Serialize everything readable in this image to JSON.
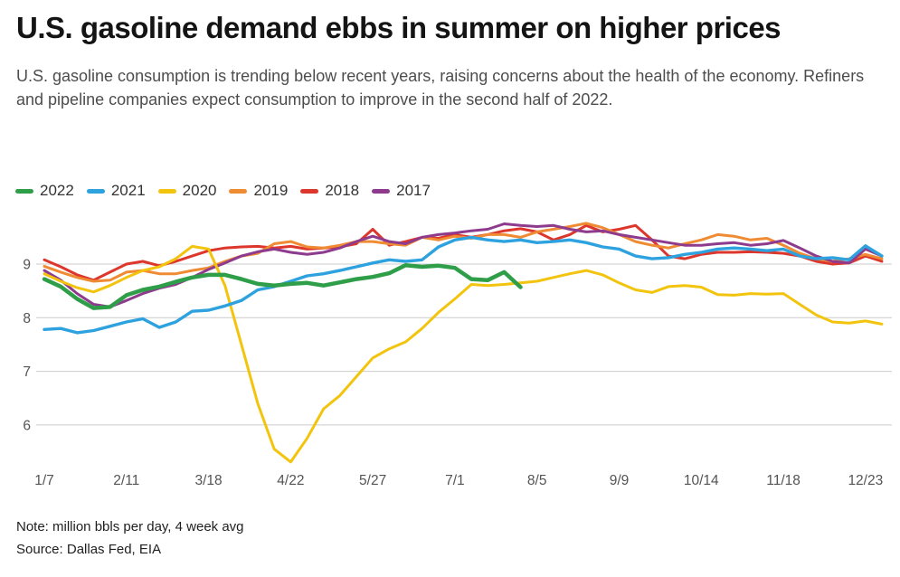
{
  "header": {
    "title": "U.S. gasoline demand ebbs in summer on higher prices",
    "subtitle": "U.S. gasoline consumption is trending below recent years, raising concerns about the health of the economy. Refiners and pipeline companies expect consumption to improve in the second half of 2022."
  },
  "footer": {
    "note": "Note: million bbls per day, 4 week avg",
    "source": "Source: Dallas Fed, EIA"
  },
  "colors": {
    "grid": "#cbcbcb",
    "axis_text": "#545454",
    "title_text": "#141414",
    "subtitle_text": "#4d4d4d"
  },
  "chart_data": {
    "type": "line",
    "title": "U.S. gasoline demand ebbs in summer on higher prices",
    "ylabel": "million bbls per day, 4 week avg",
    "xlabel": "",
    "grid": "horizontal",
    "legend_position": "top",
    "y_ticks": [
      9,
      8,
      7,
      6
    ],
    "ylim": [
      5.2,
      9.9
    ],
    "x_total_points": 52,
    "x_tick_positions": [
      0,
      5,
      10,
      15,
      20,
      25,
      30,
      35,
      40,
      45,
      50
    ],
    "x_tick_labels": [
      "1/7",
      "2/11",
      "3/18",
      "4/22",
      "5/27",
      "7/1",
      "8/5",
      "9/9",
      "10/14",
      "11/18",
      "12/23"
    ],
    "series": [
      {
        "name": "2022",
        "color": "#2f9e48",
        "values": [
          8.72,
          8.58,
          8.35,
          8.18,
          8.2,
          8.42,
          8.52,
          8.58,
          8.67,
          8.75,
          8.8,
          8.8,
          8.72,
          8.63,
          8.6,
          8.63,
          8.65,
          8.6,
          8.66,
          8.72,
          8.76,
          8.83,
          8.98,
          8.95,
          8.97,
          8.93,
          8.72,
          8.7,
          8.85,
          8.57
        ]
      },
      {
        "name": "2021",
        "color": "#2da2df",
        "values": [
          7.78,
          7.8,
          7.72,
          7.76,
          7.84,
          7.92,
          7.98,
          7.82,
          7.92,
          8.12,
          8.14,
          8.22,
          8.32,
          8.52,
          8.58,
          8.68,
          8.78,
          8.82,
          8.88,
          8.95,
          9.02,
          9.08,
          9.05,
          9.08,
          9.32,
          9.45,
          9.5,
          9.45,
          9.42,
          9.45,
          9.4,
          9.42,
          9.45,
          9.4,
          9.32,
          9.28,
          9.15,
          9.1,
          9.12,
          9.18,
          9.22,
          9.28,
          9.3,
          9.28,
          9.25,
          9.28,
          9.15,
          9.1,
          9.12,
          9.08,
          9.34,
          9.15
        ]
      },
      {
        "name": "2020",
        "color": "#f2c40e",
        "values": [
          8.82,
          8.68,
          8.56,
          8.48,
          8.6,
          8.75,
          8.88,
          8.95,
          9.1,
          9.33,
          9.28,
          8.6,
          7.5,
          6.4,
          5.55,
          5.31,
          5.75,
          6.3,
          6.55,
          6.9,
          7.25,
          7.42,
          7.55,
          7.8,
          8.1,
          8.35,
          8.62,
          8.6,
          8.62,
          8.65,
          8.68,
          8.75,
          8.82,
          8.88,
          8.8,
          8.65,
          8.52,
          8.47,
          8.58,
          8.6,
          8.57,
          8.43,
          8.42,
          8.45,
          8.44,
          8.45,
          8.25,
          8.05,
          7.92,
          7.9,
          7.94,
          7.88
        ]
      },
      {
        "name": "2019",
        "color": "#ef8b33",
        "values": [
          8.96,
          8.85,
          8.75,
          8.68,
          8.7,
          8.85,
          8.88,
          8.82,
          8.82,
          8.88,
          8.93,
          9.05,
          9.15,
          9.2,
          9.38,
          9.42,
          9.32,
          9.3,
          9.35,
          9.42,
          9.42,
          9.38,
          9.35,
          9.5,
          9.45,
          9.52,
          9.48,
          9.55,
          9.55,
          9.5,
          9.6,
          9.65,
          9.7,
          9.76,
          9.68,
          9.55,
          9.42,
          9.35,
          9.3,
          9.38,
          9.45,
          9.55,
          9.52,
          9.45,
          9.48,
          9.35,
          9.2,
          9.1,
          9.05,
          9.1,
          9.18,
          9.1
        ]
      },
      {
        "name": "2018",
        "color": "#dd362c",
        "values": [
          9.08,
          8.95,
          8.8,
          8.7,
          8.85,
          9.0,
          9.05,
          8.97,
          9.05,
          9.15,
          9.25,
          9.3,
          9.32,
          9.33,
          9.3,
          9.33,
          9.28,
          9.3,
          9.32,
          9.38,
          9.65,
          9.35,
          9.42,
          9.5,
          9.48,
          9.55,
          9.5,
          9.55,
          9.62,
          9.66,
          9.6,
          9.45,
          9.55,
          9.72,
          9.6,
          9.65,
          9.72,
          9.45,
          9.15,
          9.1,
          9.18,
          9.22,
          9.22,
          9.23,
          9.22,
          9.2,
          9.15,
          9.05,
          9.0,
          9.02,
          9.15,
          9.05
        ]
      },
      {
        "name": "2017",
        "color": "#8e3b8e",
        "values": [
          8.88,
          8.7,
          8.45,
          8.25,
          8.2,
          8.32,
          8.45,
          8.55,
          8.62,
          8.75,
          8.9,
          9.02,
          9.15,
          9.23,
          9.28,
          9.22,
          9.18,
          9.22,
          9.3,
          9.42,
          9.52,
          9.42,
          9.38,
          9.5,
          9.55,
          9.58,
          9.62,
          9.65,
          9.75,
          9.72,
          9.7,
          9.72,
          9.65,
          9.6,
          9.62,
          9.55,
          9.5,
          9.45,
          9.4,
          9.35,
          9.35,
          9.38,
          9.4,
          9.35,
          9.38,
          9.44,
          9.3,
          9.15,
          9.05,
          9.02,
          9.28,
          9.15
        ]
      }
    ]
  }
}
